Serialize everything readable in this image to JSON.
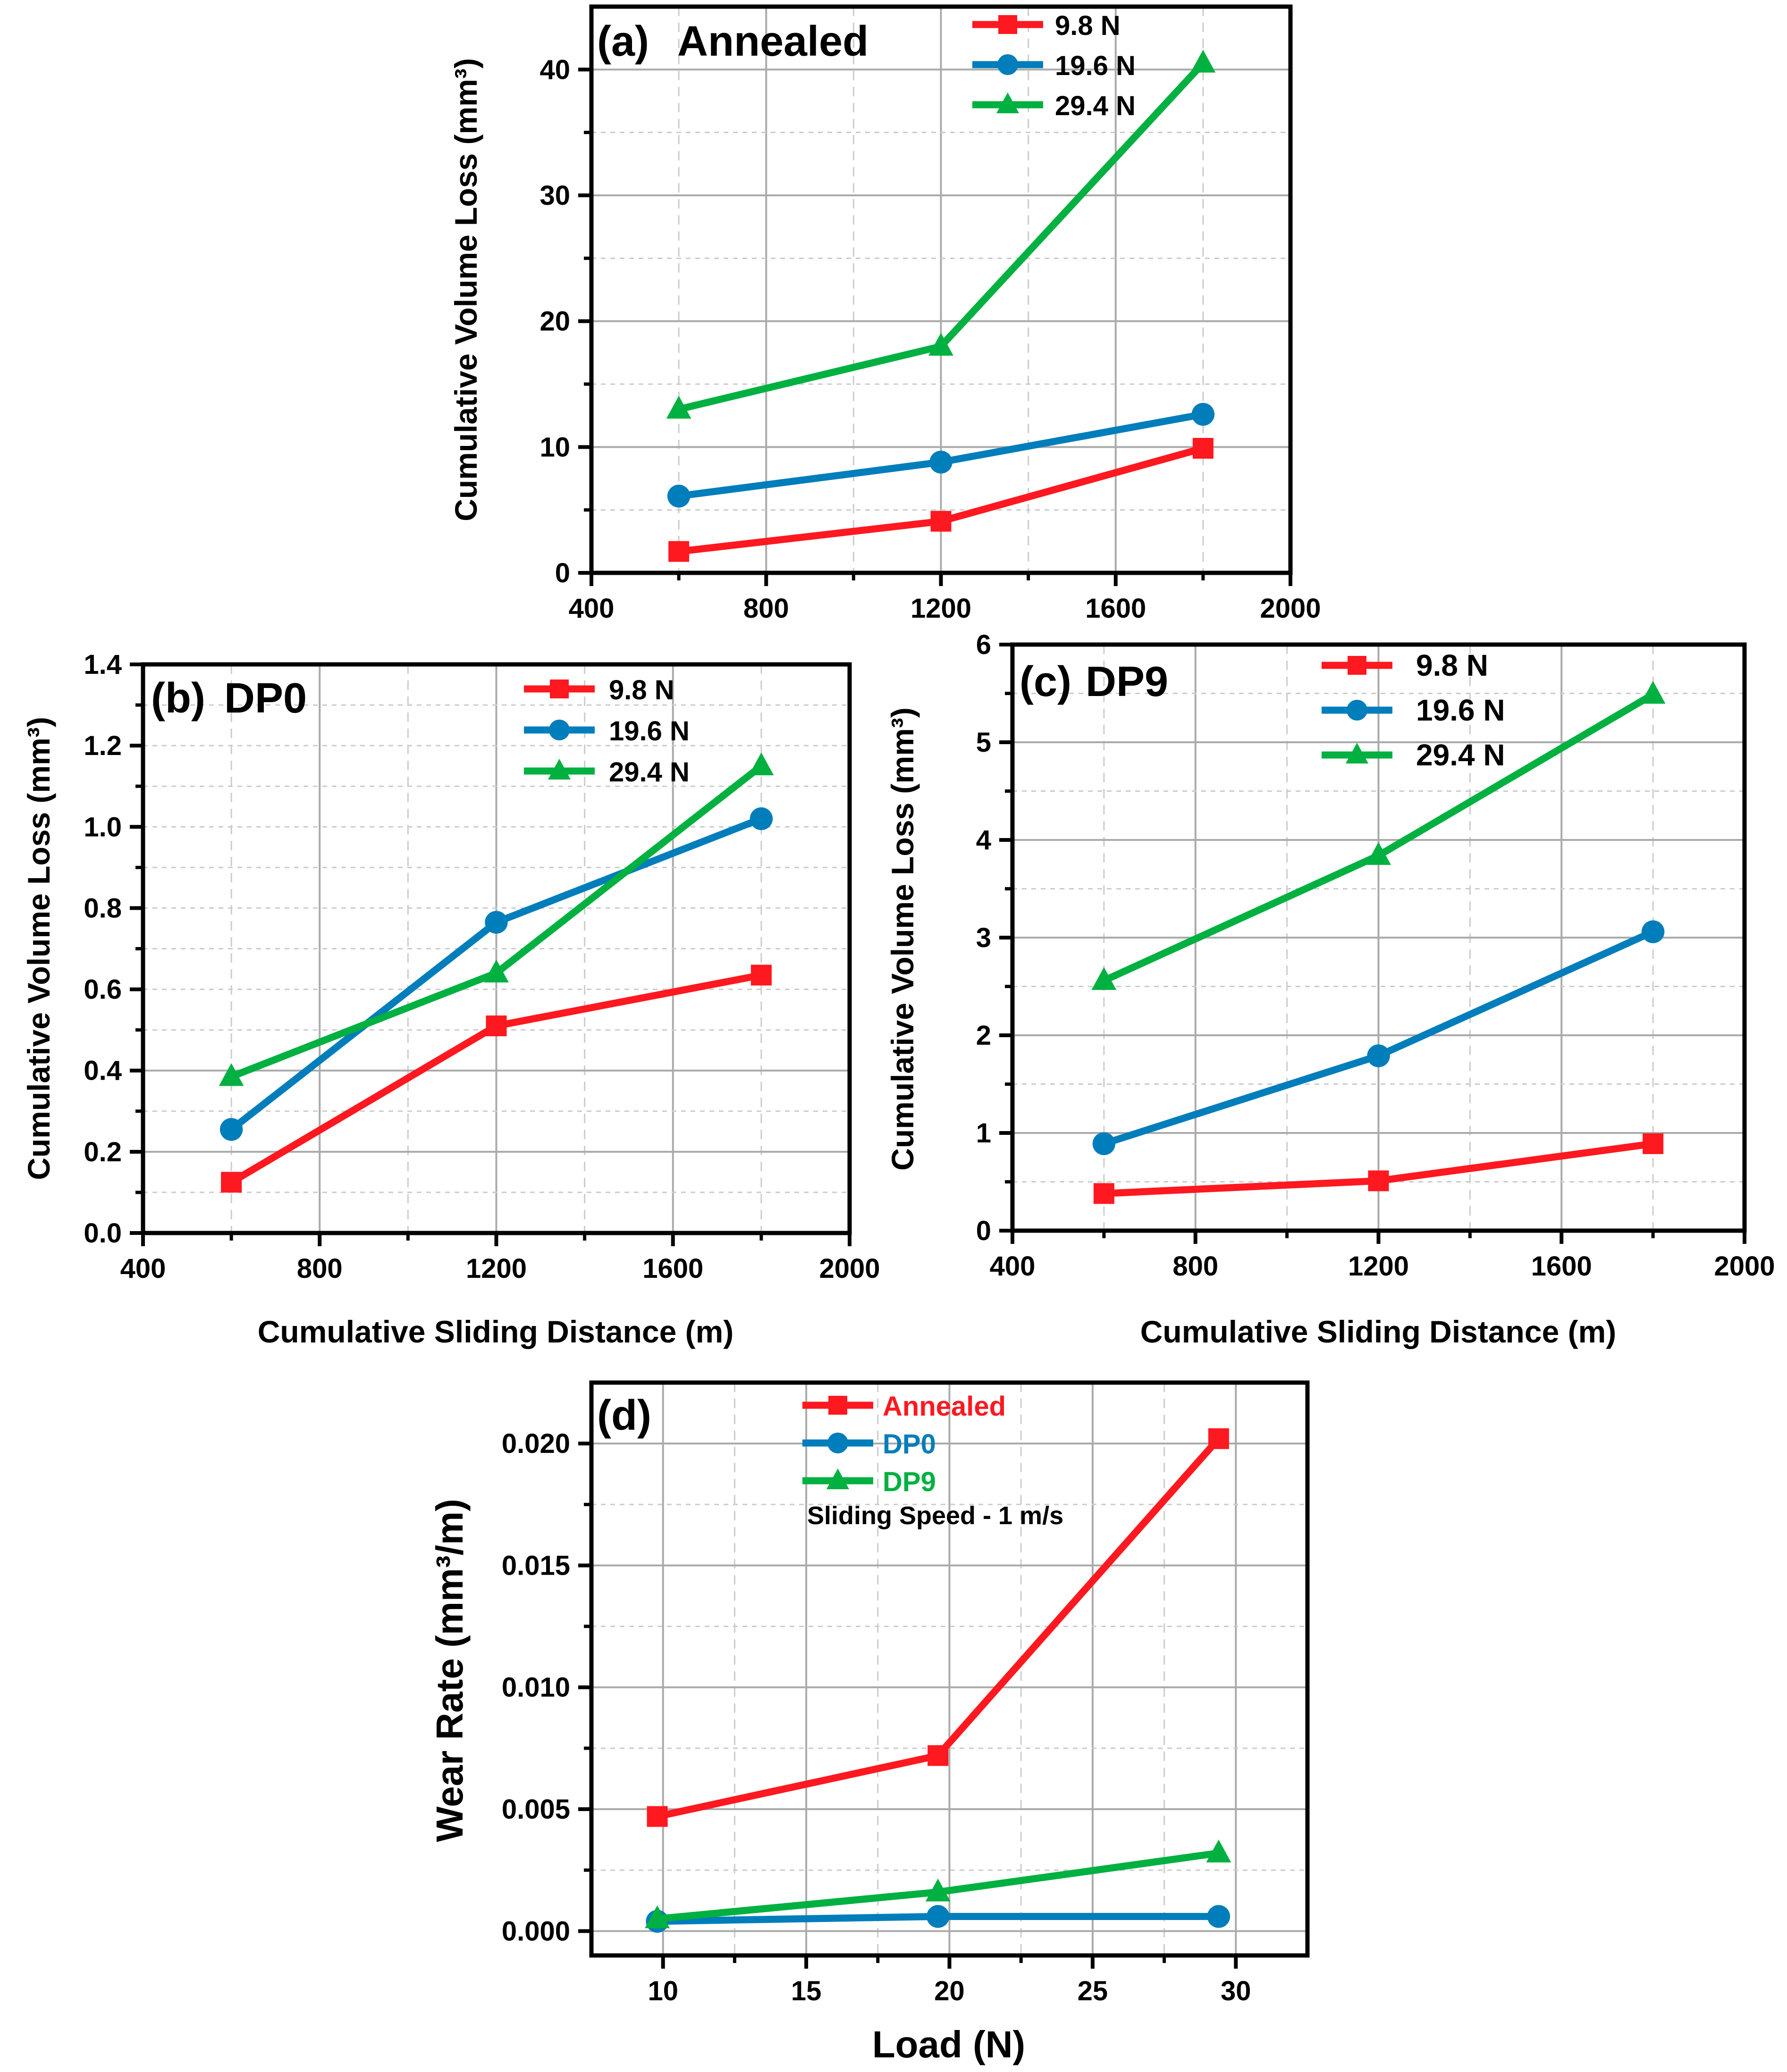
{
  "colors": {
    "s1": "#fe1820",
    "s2": "#007dbb",
    "s3": "#00b040"
  },
  "chart_data": [
    {
      "id": "a",
      "type": "line",
      "panel_label": "(a)",
      "title": "Annealed",
      "xlabel": "",
      "ylabel": "Cumulative Volume Loss (mm³)",
      "xlim": [
        400,
        2000
      ],
      "ylim": [
        0,
        45
      ],
      "xticks": [
        400,
        800,
        1200,
        1600,
        2000
      ],
      "yticks": [
        0,
        10,
        20,
        30,
        40
      ],
      "ydecimals": 0,
      "x": [
        600,
        1200,
        1800
      ],
      "series": [
        {
          "name": "9.8   N",
          "marker": "square",
          "values": [
            1.7,
            4.1,
            9.9
          ]
        },
        {
          "name": "19.6 N",
          "marker": "circle",
          "values": [
            6.1,
            8.8,
            12.6
          ]
        },
        {
          "name": "29.4 N",
          "marker": "triangle",
          "values": [
            13.0,
            18.0,
            40.5
          ]
        }
      ],
      "grid": true,
      "legend": "top-center"
    },
    {
      "id": "b",
      "type": "line",
      "panel_label": "(b)",
      "title": "DP0",
      "xlabel": "Cumulative Sliding Distance (m)",
      "ylabel": "Cumulative Volume Loss (mm³)",
      "xlim": [
        400,
        2000
      ],
      "ylim": [
        0,
        1.4
      ],
      "xticks": [
        400,
        800,
        1200,
        1600,
        2000
      ],
      "yticks": [
        0,
        0.2,
        0.4,
        0.6,
        0.8,
        1.0,
        1.2,
        1.4
      ],
      "ydecimals": 1,
      "x": [
        600,
        1200,
        1800
      ],
      "series": [
        {
          "name": "9.8 N",
          "marker": "square",
          "values": [
            0.125,
            0.51,
            0.635
          ]
        },
        {
          "name": "19.6 N",
          "marker": "circle",
          "values": [
            0.255,
            0.765,
            1.02
          ]
        },
        {
          "name": "29.4 N",
          "marker": "triangle",
          "values": [
            0.385,
            0.64,
            1.15
          ]
        }
      ],
      "grid": true,
      "legend": "top-center"
    },
    {
      "id": "c",
      "type": "line",
      "panel_label": "(c)",
      "title": "DP9",
      "xlabel": "Cumulative Sliding Distance (m)",
      "ylabel": "Cumulative Volume Loss (mm³)",
      "xlim": [
        400,
        2000
      ],
      "ylim": [
        0,
        6
      ],
      "xticks": [
        400,
        800,
        1200,
        1600,
        2000
      ],
      "yticks": [
        0,
        1,
        2,
        3,
        4,
        5,
        6
      ],
      "ydecimals": 0,
      "x": [
        600,
        1200,
        1800
      ],
      "series": [
        {
          "name": "9.8   N",
          "marker": "square",
          "values": [
            0.38,
            0.51,
            0.89
          ]
        },
        {
          "name": "19.6 N",
          "marker": "circle",
          "values": [
            0.89,
            1.79,
            3.06
          ]
        },
        {
          "name": "29.4 N",
          "marker": "triangle",
          "values": [
            2.56,
            3.84,
            5.49
          ]
        }
      ],
      "grid": true,
      "legend": "top-left"
    },
    {
      "id": "d",
      "type": "line",
      "panel_label": "(d)",
      "title": "",
      "annotation": "Sliding Speed - 1 m/s",
      "xlabel": "Load (N)",
      "ylabel": "Wear Rate (mm³/m)",
      "xlim": [
        7.5,
        32.5
      ],
      "ylim": [
        -0.001,
        0.0225
      ],
      "xticks": [
        10,
        15,
        20,
        25,
        30
      ],
      "yticks": [
        0,
        0.005,
        0.01,
        0.015,
        0.02
      ],
      "ydecimals": 3,
      "x": [
        9.8,
        19.6,
        29.4
      ],
      "series": [
        {
          "name": "Annealed",
          "marker": "square",
          "values": [
            0.0047,
            0.0072,
            0.0202
          ]
        },
        {
          "name": "DP0",
          "marker": "circle",
          "values": [
            0.0004,
            0.0006,
            0.0006
          ]
        },
        {
          "name": "DP9",
          "marker": "triangle",
          "values": [
            0.0005,
            0.0016,
            0.0032
          ]
        }
      ],
      "grid": true,
      "legend": "top-center",
      "legend_text_colored": true
    }
  ]
}
